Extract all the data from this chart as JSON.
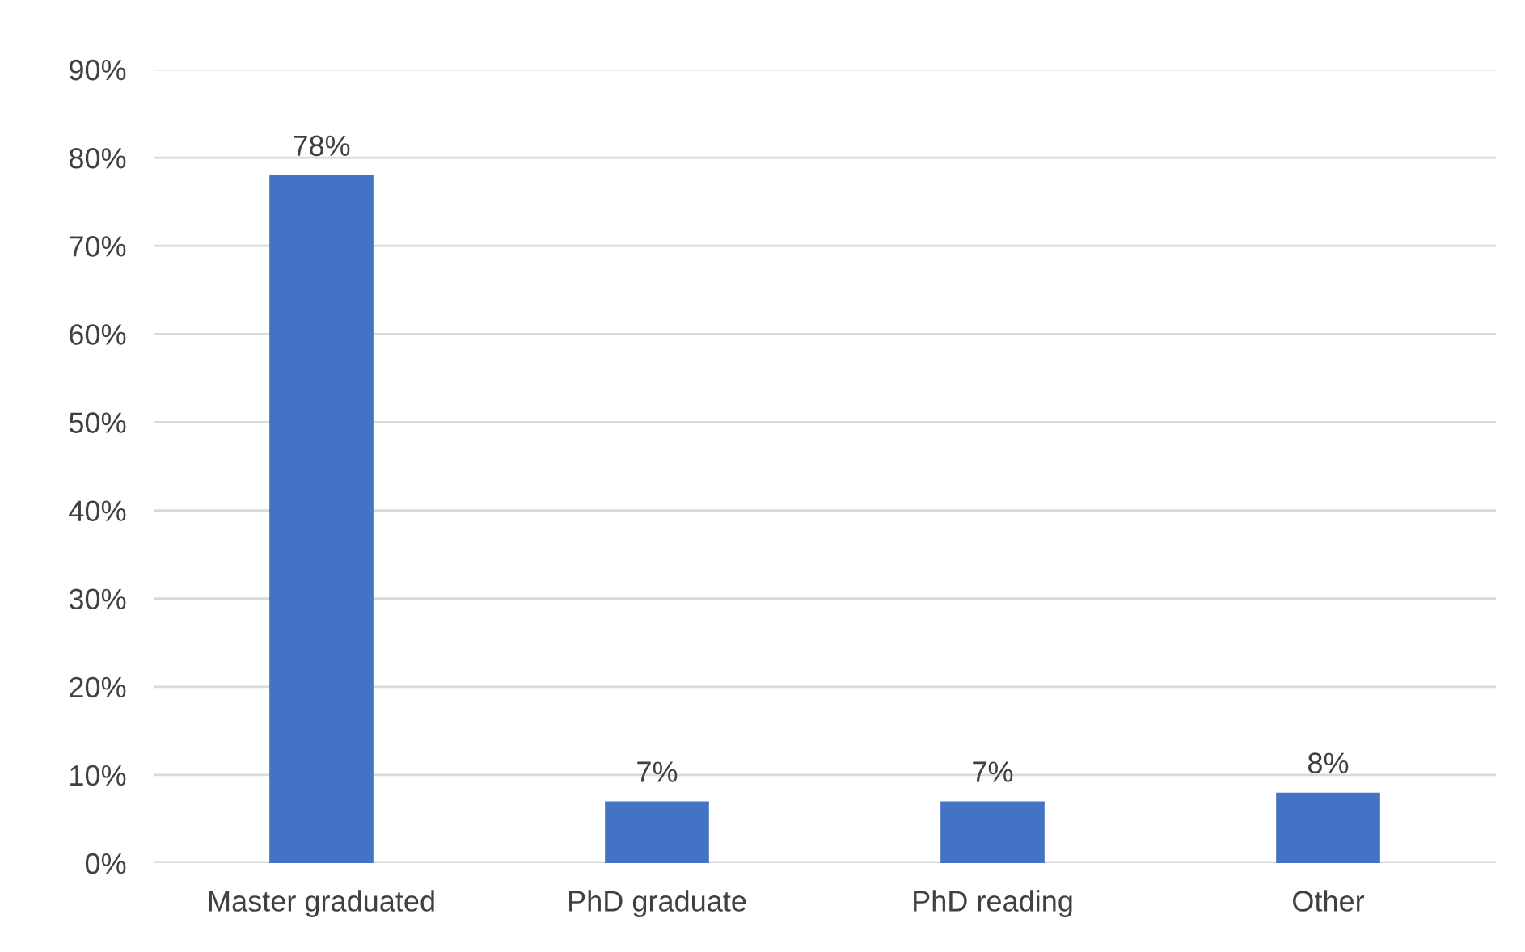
{
  "chart_data": {
    "type": "bar",
    "categories": [
      "Master graduated",
      "PhD graduate",
      "PhD reading",
      "Other"
    ],
    "values": [
      78,
      7,
      7,
      8
    ],
    "color": "#4472c4",
    "value_labels": [
      "78%",
      "7%",
      "7%",
      "8%"
    ],
    "ylim": [
      0,
      90
    ],
    "yticks": [
      {
        "value": 0,
        "label": "0%"
      },
      {
        "value": 10,
        "label": "10%"
      },
      {
        "value": 20,
        "label": "20%"
      },
      {
        "value": 30,
        "label": "30%"
      },
      {
        "value": 40,
        "label": "40%"
      },
      {
        "value": 50,
        "label": "50%"
      },
      {
        "value": 60,
        "label": "60%"
      },
      {
        "value": 70,
        "label": "70%"
      },
      {
        "value": 80,
        "label": "80%"
      },
      {
        "value": 90,
        "label": "90%"
      }
    ],
    "grid": "y"
  }
}
